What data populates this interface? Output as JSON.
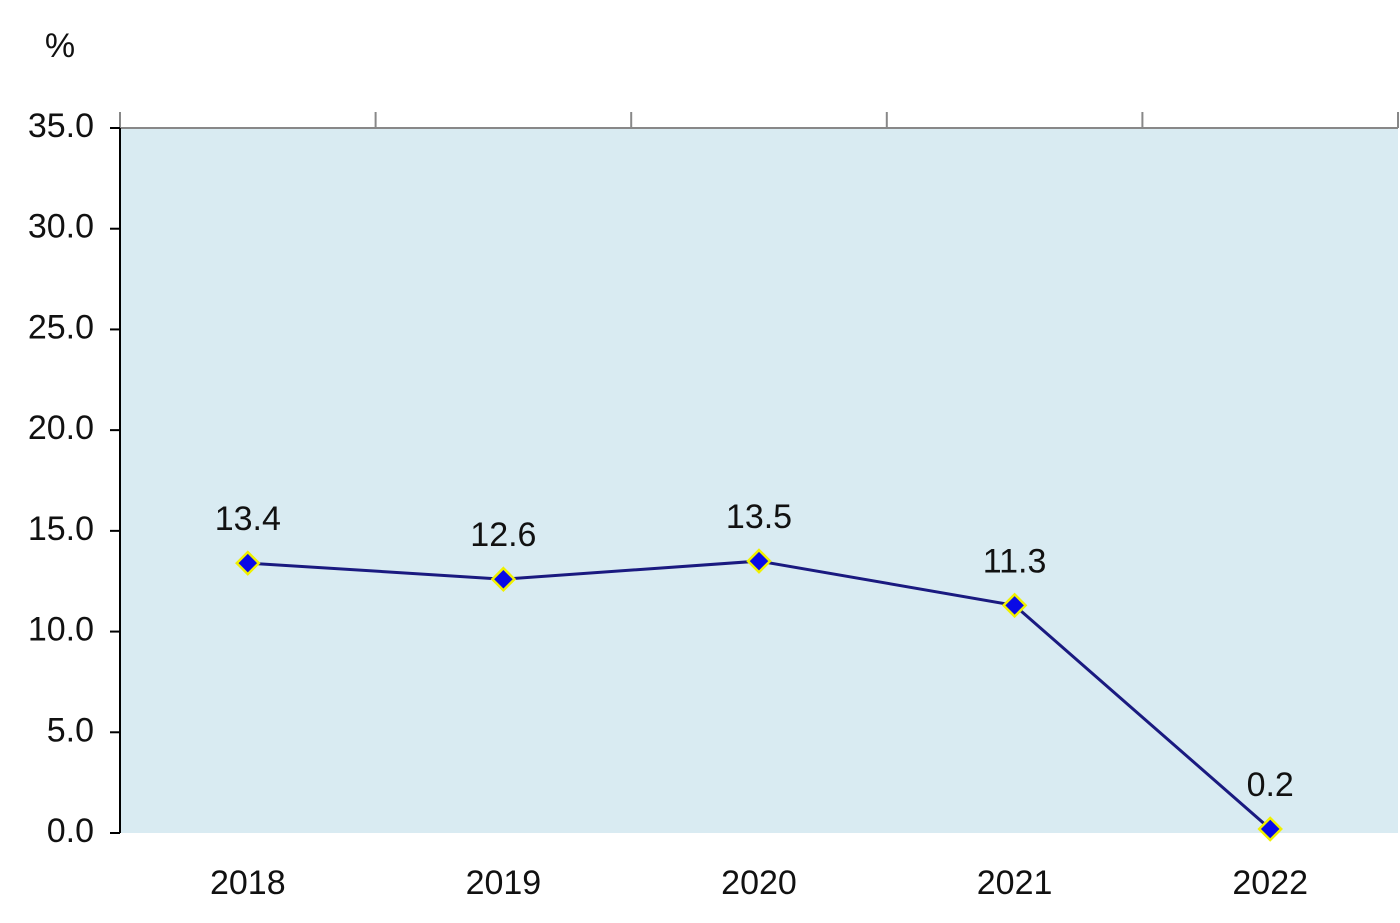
{
  "chart_data": {
    "type": "line",
    "y_label": "%",
    "categories": [
      "2018",
      "2019",
      "2020",
      "2021",
      "2022"
    ],
    "series": [
      {
        "color": "#1a1a80",
        "values": [
          13.4,
          12.6,
          13.5,
          11.3,
          0.2
        ]
      }
    ],
    "ylim": [
      0,
      35
    ],
    "yticks": [
      {
        "value": 0,
        "label": "0.0"
      },
      {
        "value": 5,
        "label": "5.0"
      },
      {
        "value": 10,
        "label": "10.0"
      },
      {
        "value": 15,
        "label": "15.0"
      },
      {
        "value": 20,
        "label": "20.0"
      },
      {
        "value": 25,
        "label": "25.0"
      },
      {
        "value": 30,
        "label": "30.0"
      },
      {
        "value": 35,
        "label": "35.0"
      }
    ],
    "plot_background": "#d9ebf2",
    "marker_color": "#0a0ae6",
    "marker_edge_color": "#f0f000"
  }
}
